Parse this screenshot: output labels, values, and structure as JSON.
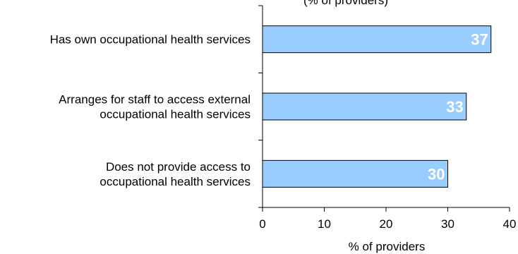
{
  "chart_data": {
    "type": "bar",
    "orientation": "horizontal",
    "title_visible_fragment": "(% of providers)",
    "categories": [
      [
        "Has own occupational health services"
      ],
      [
        "Arranges for staff to access external",
        "occupational health services"
      ],
      [
        "Does not provide access to",
        "occupational health services"
      ]
    ],
    "values": [
      37,
      33,
      30
    ],
    "data_labels": [
      "37",
      "33",
      "30"
    ],
    "xlabel": "% of providers",
    "ylabel": "",
    "xlim": [
      0,
      40
    ],
    "x_ticks": [
      "0",
      "10",
      "20",
      "30",
      "40"
    ],
    "grid": false,
    "legend": "none",
    "colors": {
      "bar_fill": "#99ccff",
      "bar_stroke": "#000000",
      "data_label": "#ffffff",
      "text": "#000000"
    }
  }
}
